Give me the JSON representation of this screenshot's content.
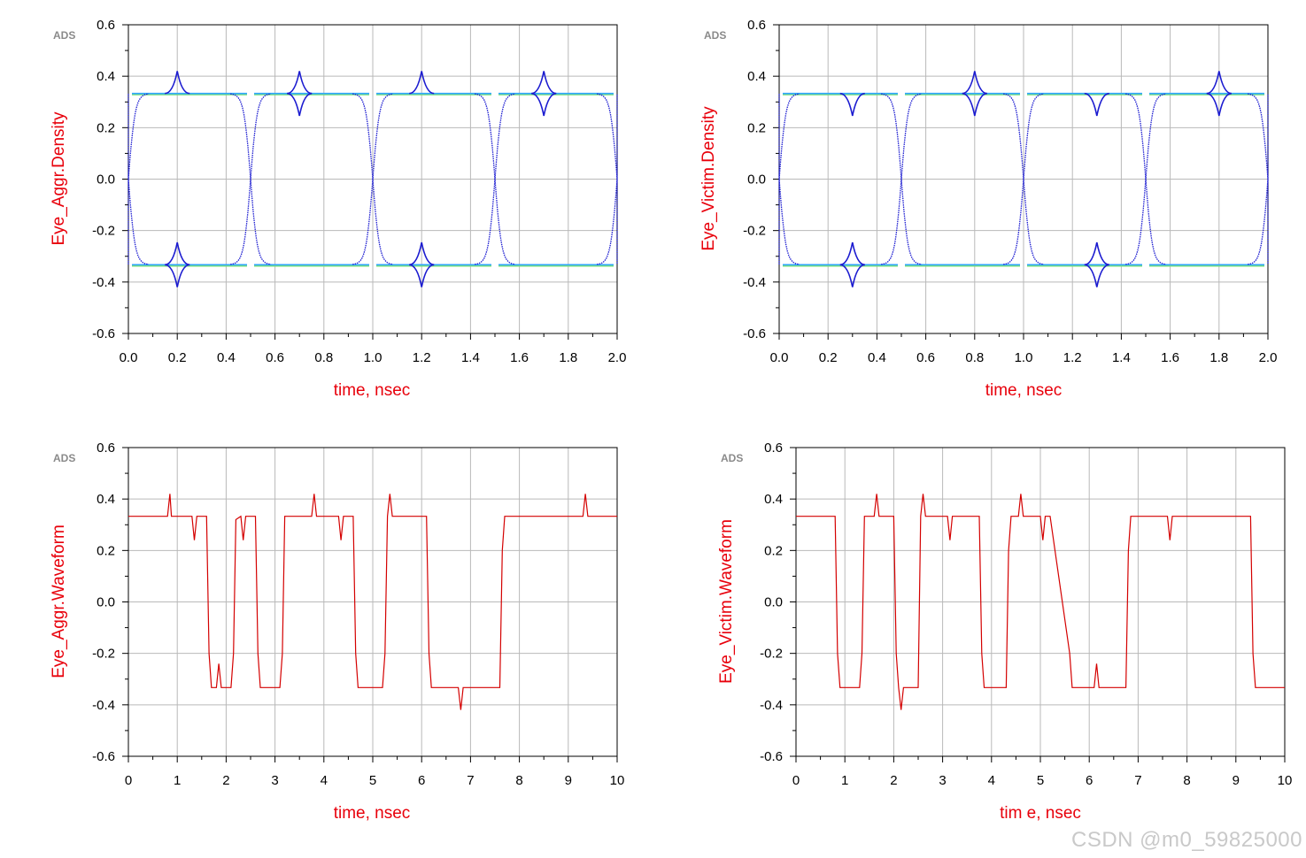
{
  "watermark": "CSDN @m0_59825000",
  "colors": {
    "grid": "#b9b9b9",
    "axis": "#000000",
    "label": "#e8000b",
    "eye_dark": "#1b1bd0",
    "eye_mid": "#2fa6ff",
    "eye_light": "#78e07a",
    "wave": "#d40000"
  },
  "chart_data": [
    {
      "type": "line",
      "plot": "eye",
      "badge": "ADS",
      "xlabel": "time, nsec",
      "ylabel": "Eye_Aggr.Density",
      "xlim": [
        0,
        2.0
      ],
      "ylim": [
        -0.6,
        0.6
      ],
      "xticks": [
        "0.0",
        "0.2",
        "0.4",
        "0.6",
        "0.8",
        "1.0",
        "1.2",
        "1.4",
        "1.6",
        "1.8",
        "2.0"
      ],
      "yticks": [
        "0.6",
        "0.4",
        "0.2",
        "0.0",
        "-0.2",
        "-0.4",
        "-0.6"
      ],
      "levels": [
        0.333,
        -0.333
      ],
      "crossings": [
        0.0,
        0.5,
        1.0,
        1.5,
        2.0
      ],
      "bumps": [
        {
          "x": 0.2,
          "level": 0.333,
          "dir": "up"
        },
        {
          "x": 0.7,
          "level": 0.333,
          "dir": "both"
        },
        {
          "x": 1.2,
          "level": 0.333,
          "dir": "up"
        },
        {
          "x": 1.7,
          "level": 0.333,
          "dir": "both"
        },
        {
          "x": 0.2,
          "level": -0.333,
          "dir": "both"
        },
        {
          "x": 1.2,
          "level": -0.333,
          "dir": "both"
        }
      ]
    },
    {
      "type": "line",
      "plot": "eye",
      "badge": "ADS",
      "xlabel": "time, nsec",
      "ylabel": "Eye_Victim.Density",
      "xlim": [
        0,
        2.0
      ],
      "ylim": [
        -0.6,
        0.6
      ],
      "xticks": [
        "0.0",
        "0.2",
        "0.4",
        "0.6",
        "0.8",
        "1.0",
        "1.2",
        "1.4",
        "1.6",
        "1.8",
        "2.0"
      ],
      "yticks": [
        "0.6",
        "0.4",
        "0.2",
        "0.0",
        "-0.2",
        "-0.4",
        "-0.6"
      ],
      "levels": [
        0.333,
        -0.333
      ],
      "crossings": [
        0.0,
        0.5,
        1.0,
        1.5,
        2.0
      ],
      "bumps": [
        {
          "x": 0.3,
          "level": 0.333,
          "dir": "down"
        },
        {
          "x": 0.8,
          "level": 0.333,
          "dir": "both"
        },
        {
          "x": 1.3,
          "level": 0.333,
          "dir": "down"
        },
        {
          "x": 1.8,
          "level": 0.333,
          "dir": "both"
        },
        {
          "x": 0.3,
          "level": -0.333,
          "dir": "both"
        },
        {
          "x": 1.3,
          "level": -0.333,
          "dir": "both"
        }
      ]
    },
    {
      "type": "line",
      "plot": "wave",
      "badge": "ADS",
      "xlabel": "time, nsec",
      "ylabel": "Eye_Aggr.Waveform",
      "xlim": [
        0,
        10
      ],
      "ylim": [
        -0.6,
        0.6
      ],
      "xticks": [
        "0",
        "1",
        "2",
        "3",
        "4",
        "5",
        "6",
        "7",
        "8",
        "9",
        "10"
      ],
      "yticks": [
        "0.6",
        "0.4",
        "0.2",
        "0.0",
        "-0.2",
        "-0.4",
        "-0.6"
      ],
      "series": [
        {
          "x": [
            0,
            0.8,
            0.85,
            0.88,
            0.92,
            1.3,
            1.35,
            1.4,
            1.45,
            1.6,
            1.65,
            1.7,
            1.8,
            1.85,
            1.9,
            2.1,
            2.15,
            2.2,
            2.3,
            2.35,
            2.4,
            2.45,
            2.6,
            2.65,
            2.7,
            3.1,
            3.15,
            3.2,
            3.75,
            3.8,
            3.85,
            4.3,
            4.35,
            4.4,
            4.45,
            4.6,
            4.65,
            4.7,
            5.2,
            5.25,
            5.3,
            5.35,
            5.4,
            6.1,
            6.15,
            6.2,
            6.75,
            6.8,
            6.85,
            7.6,
            7.65,
            7.7,
            9.3,
            9.35,
            9.4,
            10
          ],
          "y": [
            0.333,
            0.333,
            0.42,
            0.333,
            0.333,
            0.333,
            0.24,
            0.333,
            0.333,
            0.333,
            -0.2,
            -0.333,
            -0.333,
            -0.24,
            -0.333,
            -0.333,
            -0.2,
            0.32,
            0.333,
            0.24,
            0.333,
            0.333,
            0.333,
            -0.2,
            -0.333,
            -0.333,
            -0.2,
            0.333,
            0.333,
            0.42,
            0.333,
            0.333,
            0.24,
            0.333,
            0.333,
            0.333,
            -0.2,
            -0.333,
            -0.333,
            -0.2,
            0.333,
            0.42,
            0.333,
            0.333,
            -0.2,
            -0.333,
            -0.333,
            -0.42,
            -0.333,
            -0.333,
            0.2,
            0.333,
            0.333,
            0.42,
            0.333,
            0.333
          ]
        }
      ]
    },
    {
      "type": "line",
      "plot": "wave",
      "badge": "ADS",
      "xlabel": "tim e, nsec",
      "ylabel": "Eye_Victim.Waveform",
      "xlim": [
        0,
        10
      ],
      "ylim": [
        -0.6,
        0.6
      ],
      "xticks": [
        "0",
        "1",
        "2",
        "3",
        "4",
        "5",
        "6",
        "7",
        "8",
        "9",
        "10"
      ],
      "yticks": [
        "0.6",
        "0.4",
        "0.2",
        "0.0",
        "-0.2",
        "-0.4",
        "-0.6"
      ],
      "series": [
        {
          "x": [
            0,
            0.8,
            0.85,
            0.9,
            1.3,
            1.35,
            1.4,
            1.6,
            1.65,
            1.7,
            2.0,
            2.05,
            2.1,
            2.15,
            2.2,
            2.5,
            2.55,
            2.6,
            2.65,
            2.7,
            3.1,
            3.15,
            3.2,
            3.75,
            3.8,
            3.85,
            4.3,
            4.35,
            4.4,
            4.55,
            4.6,
            4.65,
            5.0,
            5.05,
            5.1,
            5.15,
            5.2,
            5.6,
            5.65,
            5.7,
            6.1,
            6.15,
            6.2,
            6.75,
            6.8,
            6.85,
            7.6,
            7.65,
            7.7,
            9.3,
            9.35,
            9.4,
            10
          ],
          "y": [
            0.333,
            0.333,
            -0.2,
            -0.333,
            -0.333,
            -0.2,
            0.333,
            0.333,
            0.42,
            0.333,
            0.333,
            -0.2,
            -0.333,
            -0.42,
            -0.333,
            -0.333,
            0.333,
            0.42,
            0.333,
            0.333,
            0.333,
            0.24,
            0.333,
            0.333,
            -0.2,
            -0.333,
            -0.333,
            0.2,
            0.333,
            0.333,
            0.42,
            0.333,
            0.333,
            0.24,
            0.333,
            0.333,
            0.333,
            -0.2,
            -0.333,
            -0.333,
            -0.333,
            -0.24,
            -0.333,
            -0.333,
            0.2,
            0.333,
            0.333,
            0.24,
            0.333,
            0.333,
            -0.2,
            -0.333,
            -0.333
          ]
        }
      ]
    }
  ]
}
